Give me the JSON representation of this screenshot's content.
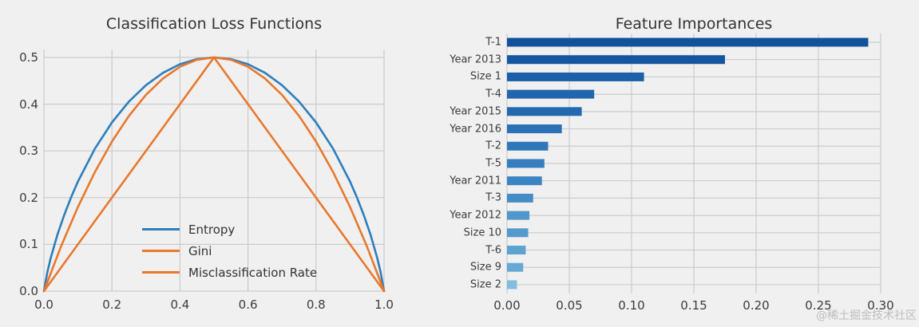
{
  "page": {
    "background": "#f0f0f0",
    "grid_color": "#cbcbcb",
    "watermark": "@稀土掘金技术社区"
  },
  "chart_data": [
    {
      "type": "line",
      "title": "Classification Loss Functions",
      "xlabel": "",
      "ylabel": "",
      "xlim": [
        0.0,
        1.0
      ],
      "ylim": [
        0.0,
        0.5
      ],
      "grid": true,
      "legend_position": "lower center inside",
      "xticks": [
        {
          "value": 0.0,
          "label": "0.0"
        },
        {
          "value": 0.2,
          "label": "0.2"
        },
        {
          "value": 0.4,
          "label": "0.4"
        },
        {
          "value": 0.6,
          "label": "0.6"
        },
        {
          "value": 0.8,
          "label": "0.8"
        },
        {
          "value": 1.0,
          "label": "1.0"
        }
      ],
      "yticks": [
        {
          "value": 0.0,
          "label": "0.0"
        },
        {
          "value": 0.1,
          "label": "0.1"
        },
        {
          "value": 0.2,
          "label": "0.2"
        },
        {
          "value": 0.3,
          "label": "0.3"
        },
        {
          "value": 0.4,
          "label": "0.4"
        },
        {
          "value": 0.5,
          "label": "0.5"
        }
      ],
      "series": [
        {
          "name": "Entropy",
          "color": "#2e7ebc",
          "x": [
            0,
            0.01,
            0.02,
            0.04,
            0.06,
            0.08,
            0.1,
            0.15,
            0.2,
            0.25,
            0.3,
            0.35,
            0.4,
            0.45,
            0.5,
            0.55,
            0.6,
            0.65,
            0.7,
            0.75,
            0.8,
            0.85,
            0.9,
            0.92,
            0.94,
            0.96,
            0.98,
            0.99,
            1
          ],
          "y": [
            0,
            0.0404,
            0.0707,
            0.1211,
            0.1637,
            0.2011,
            0.2345,
            0.3049,
            0.361,
            0.4056,
            0.4406,
            0.467,
            0.4855,
            0.4964,
            0.5,
            0.4964,
            0.4855,
            0.467,
            0.4406,
            0.4056,
            0.361,
            0.3049,
            0.2345,
            0.2011,
            0.1637,
            0.1211,
            0.0707,
            0.0404,
            0
          ]
        },
        {
          "name": "Gini",
          "color": "#e8782e",
          "x": [
            0,
            0.05,
            0.1,
            0.15,
            0.2,
            0.25,
            0.3,
            0.35,
            0.4,
            0.45,
            0.5,
            0.55,
            0.6,
            0.65,
            0.7,
            0.75,
            0.8,
            0.85,
            0.9,
            0.95,
            1
          ],
          "y": [
            0,
            0.095,
            0.18,
            0.255,
            0.32,
            0.375,
            0.42,
            0.455,
            0.48,
            0.495,
            0.5,
            0.495,
            0.48,
            0.455,
            0.42,
            0.375,
            0.32,
            0.255,
            0.18,
            0.095,
            0
          ]
        },
        {
          "name": "Misclassification Rate",
          "color": "#e8782e",
          "x": [
            0,
            0.5,
            1
          ],
          "y": [
            0,
            0.5,
            0
          ]
        }
      ]
    },
    {
      "type": "bar",
      "orientation": "horizontal",
      "title": "Feature Importances",
      "xlabel": "",
      "ylabel": "",
      "xlim": [
        0.0,
        0.3
      ],
      "grid": true,
      "categories": [
        "T-1",
        "Year 2013",
        "Size 1",
        "T-4",
        "Year 2015",
        "Year 2016",
        "T-2",
        "T-5",
        "Year 2011",
        "T-3",
        "Year 2012",
        "Size 10",
        "T-6",
        "Size 9",
        "Size 2"
      ],
      "values": [
        0.29,
        0.175,
        0.11,
        0.07,
        0.06,
        0.044,
        0.033,
        0.03,
        0.028,
        0.021,
        0.018,
        0.017,
        0.015,
        0.013,
        0.008
      ],
      "bar_colors": [
        "#12529b",
        "#15569f",
        "#1c60a8",
        "#2166ac",
        "#2469af",
        "#2b71b5",
        "#2f77b9",
        "#357dbd",
        "#3d85c2",
        "#458cc6",
        "#5098cb",
        "#549bcd",
        "#5da2d1",
        "#66a9d5",
        "#83bcde"
      ],
      "xticks": [
        {
          "value": 0.0,
          "label": "0.00"
        },
        {
          "value": 0.05,
          "label": "0.05"
        },
        {
          "value": 0.1,
          "label": "0.10"
        },
        {
          "value": 0.15,
          "label": "0.15"
        },
        {
          "value": 0.2,
          "label": "0.20"
        },
        {
          "value": 0.25,
          "label": "0.25"
        },
        {
          "value": 0.3,
          "label": "0.30"
        }
      ]
    }
  ]
}
